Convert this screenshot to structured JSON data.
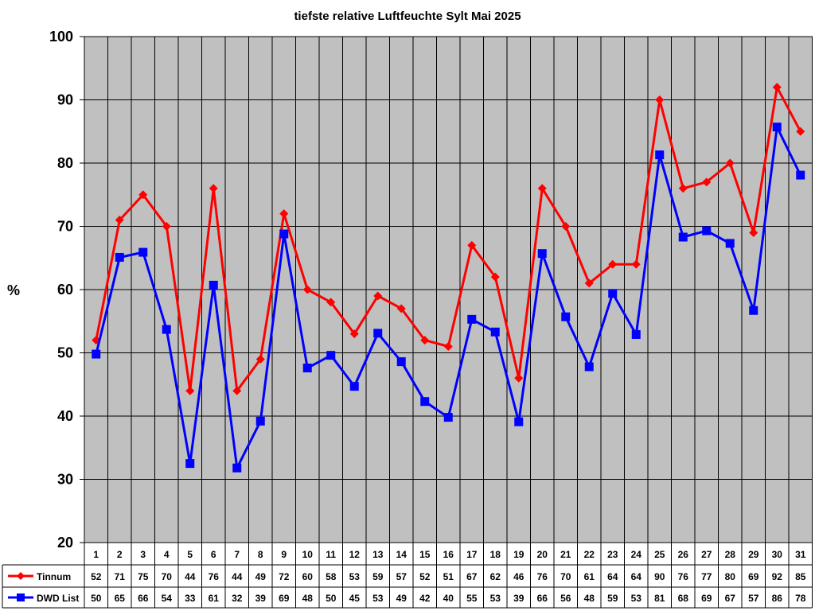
{
  "chart_data": {
    "type": "line",
    "title": "tiefste relative Luftfeuchte Sylt Mai 2025",
    "ylabel": "%",
    "xlabel": "",
    "ylim": [
      20,
      100
    ],
    "ytick_step": 10,
    "grid": true,
    "legend": "data-table",
    "categories": [
      "1",
      "2",
      "3",
      "4",
      "5",
      "6",
      "7",
      "8",
      "9",
      "10",
      "11",
      "12",
      "13",
      "14",
      "15",
      "16",
      "17",
      "18",
      "19",
      "20",
      "21",
      "22",
      "23",
      "24",
      "25",
      "26",
      "27",
      "28",
      "29",
      "30",
      "31"
    ],
    "series": [
      {
        "name": "Tinnum",
        "color": "#ff0000",
        "marker": "diamond",
        "values": [
          52,
          71,
          75,
          70,
          44,
          76,
          44,
          49,
          72,
          60,
          58,
          53,
          59,
          57,
          52,
          51,
          67,
          62,
          46,
          76,
          70,
          61,
          64,
          64,
          90,
          76,
          77,
          80,
          69,
          92,
          85
        ]
      },
      {
        "name": "DWD List",
        "color": "#0000ff",
        "marker": "square",
        "values": [
          50,
          65,
          66,
          54,
          33,
          61,
          32,
          39,
          69,
          48,
          50,
          45,
          53,
          49,
          42,
          40,
          55,
          53,
          39,
          66,
          56,
          48,
          59,
          53,
          81,
          68,
          69,
          67,
          57,
          86,
          78
        ],
        "plot_values": [
          49.8,
          65.1,
          65.9,
          53.7,
          32.5,
          60.7,
          31.8,
          39.2,
          68.8,
          47.6,
          49.6,
          44.7,
          53.1,
          48.6,
          42.3,
          39.8,
          55.3,
          53.3,
          39.1,
          65.7,
          55.7,
          47.8,
          59.4,
          52.9,
          81.3,
          68.3,
          69.3,
          67.3,
          56.7,
          85.7,
          78.1
        ]
      }
    ]
  },
  "colors": {
    "plot_background": "#c0c0c0",
    "tinnum": "#ff0000",
    "dwd": "#0000ff"
  }
}
